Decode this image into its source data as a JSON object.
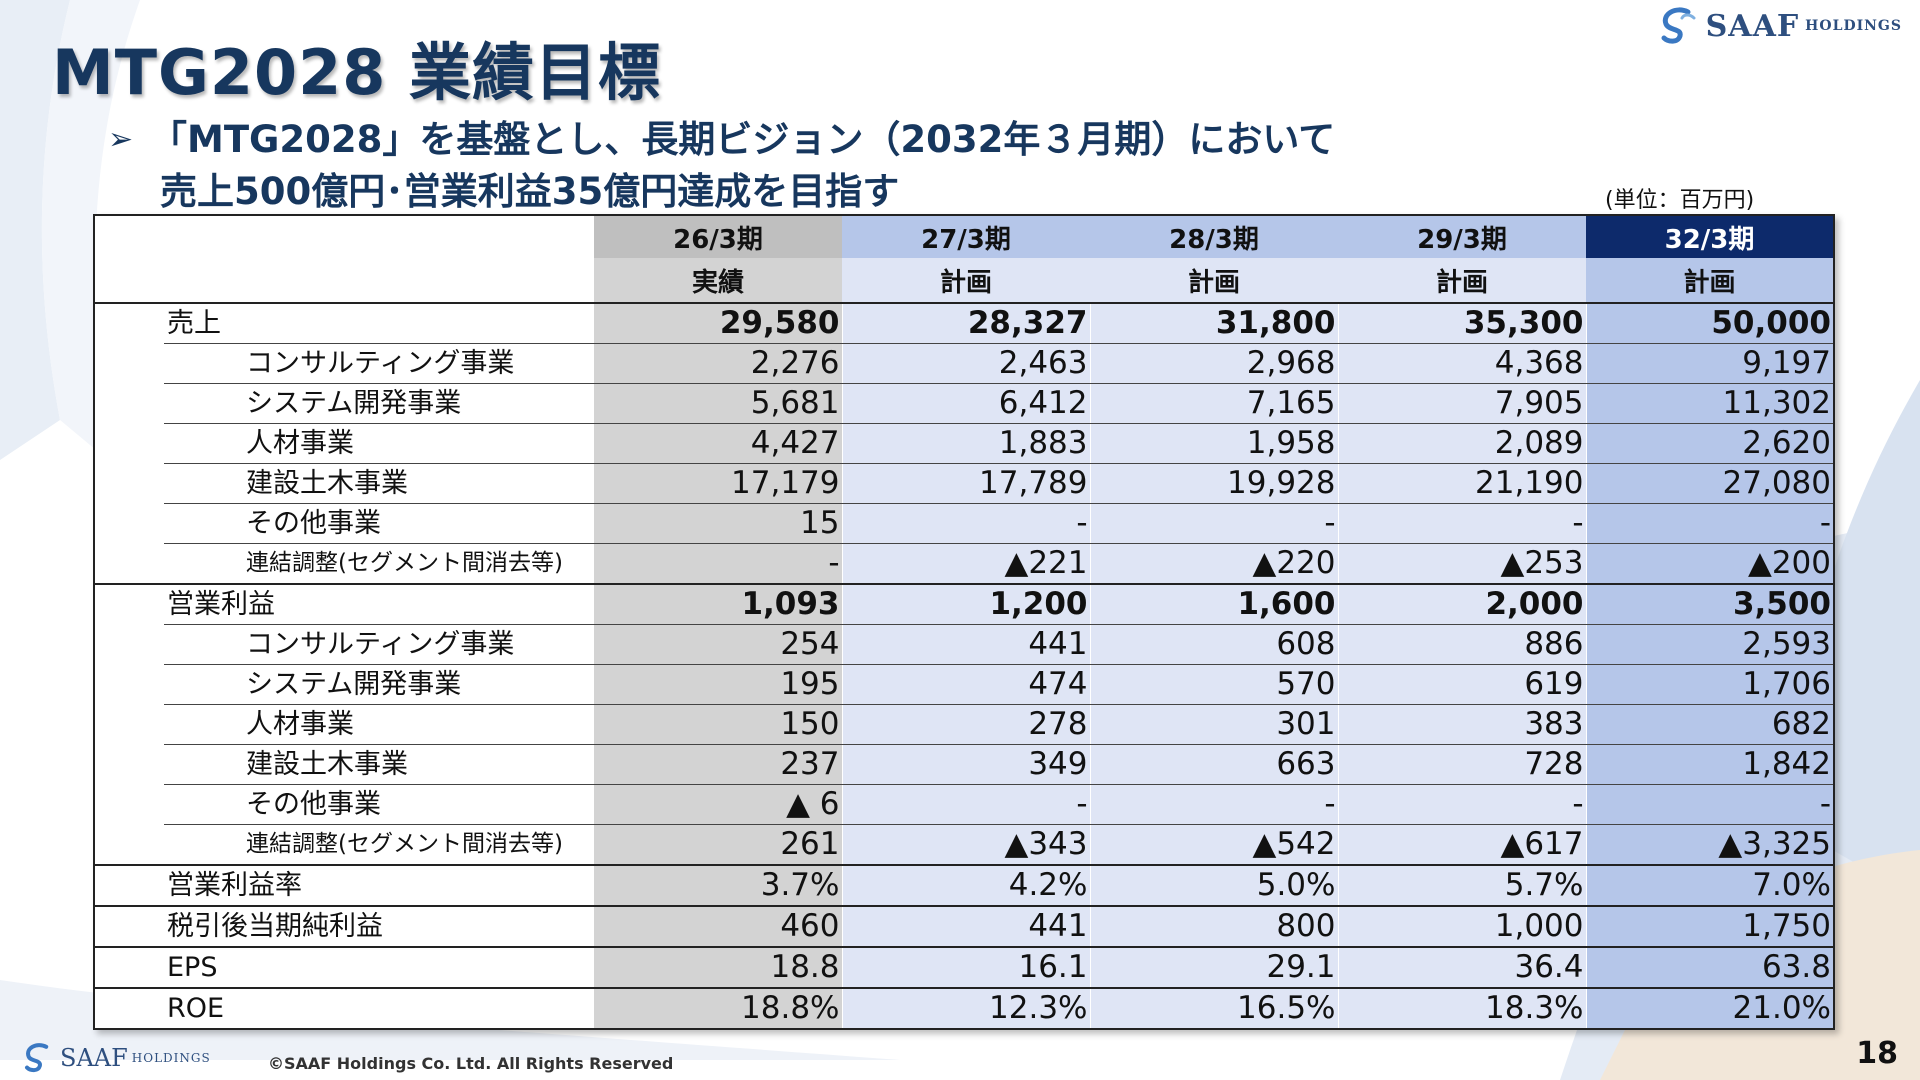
{
  "title": "MTG2028 業績目標",
  "logo": {
    "main": "SAAF",
    "sub": "HOLDINGS"
  },
  "subtitle": {
    "arrow": "➢",
    "line1": "「MTG2028」を基盤とし、長期ビジョン（2032年３月期）において",
    "line2": "売上500億円･営業利益35億円達成を目指す"
  },
  "unit": "(単位：百万円)",
  "table": {
    "periods": [
      {
        "year": "26/3期",
        "type": "実績"
      },
      {
        "year": "27/3期",
        "type": "計画"
      },
      {
        "year": "28/3期",
        "type": "計画"
      },
      {
        "year": "29/3期",
        "type": "計画"
      },
      {
        "year": "32/3期",
        "type": "計画"
      }
    ],
    "rows": [
      {
        "label": "売上",
        "level": 0,
        "values": [
          "29,580",
          "28,327",
          "31,800",
          "35,300",
          "50,000"
        ]
      },
      {
        "label": "コンサルティング事業",
        "level": 1,
        "values": [
          "2,276",
          "2,463",
          "2,968",
          "4,368",
          "9,197"
        ]
      },
      {
        "label": "システム開発事業",
        "level": 1,
        "values": [
          "5,681",
          "6,412",
          "7,165",
          "7,905",
          "11,302"
        ]
      },
      {
        "label": "人材事業",
        "level": 1,
        "values": [
          "4,427",
          "1,883",
          "1,958",
          "2,089",
          "2,620"
        ]
      },
      {
        "label": "建設土木事業",
        "level": 1,
        "values": [
          "17,179",
          "17,789",
          "19,928",
          "21,190",
          "27,080"
        ]
      },
      {
        "label": "その他事業",
        "level": 1,
        "values": [
          "15",
          "-",
          "-",
          "-",
          "-"
        ]
      },
      {
        "label": "連結調整(セグメント間消去等)",
        "level": 2,
        "values": [
          "-",
          "▲221",
          "▲220",
          "▲253",
          "▲200"
        ]
      },
      {
        "label": "営業利益",
        "level": 0,
        "values": [
          "1,093",
          "1,200",
          "1,600",
          "2,000",
          "3,500"
        ]
      },
      {
        "label": "コンサルティング事業",
        "level": 1,
        "values": [
          "254",
          "441",
          "608",
          "886",
          "2,593"
        ]
      },
      {
        "label": "システム開発事業",
        "level": 1,
        "values": [
          "195",
          "474",
          "570",
          "619",
          "1,706"
        ]
      },
      {
        "label": "人材事業",
        "level": 1,
        "values": [
          "150",
          "278",
          "301",
          "383",
          "682"
        ]
      },
      {
        "label": "建設土木事業",
        "level": 1,
        "values": [
          "237",
          "349",
          "663",
          "728",
          "1,842"
        ]
      },
      {
        "label": "その他事業",
        "level": 1,
        "values": [
          "▲ 6",
          "-",
          "-",
          "-",
          "-"
        ]
      },
      {
        "label": "連結調整(セグメント間消去等)",
        "level": 2,
        "values": [
          "261",
          "▲343",
          "▲542",
          "▲617",
          "▲3,325"
        ]
      },
      {
        "label": "営業利益率",
        "level": 0,
        "values": [
          "3.7%",
          "4.2%",
          "5.0%",
          "5.7%",
          "7.0%"
        ]
      },
      {
        "label": "税引後当期純利益",
        "level": 0,
        "values": [
          "460",
          "441",
          "800",
          "1,000",
          "1,750"
        ]
      },
      {
        "label": "EPS",
        "level": 0,
        "values": [
          "18.8",
          "16.1",
          "29.1",
          "36.4",
          "63.8"
        ]
      },
      {
        "label": "ROE",
        "level": 0,
        "values": [
          "18.8%",
          "12.3%",
          "16.5%",
          "18.3%",
          "21.0%"
        ]
      }
    ]
  },
  "footer": {
    "logo_main": "SAAF",
    "logo_sub": "HOLDINGS",
    "copyright": "©SAAF Holdings Co. Ltd. All Rights Reserved",
    "page_number": "18"
  },
  "colors": {
    "title": "#17375e",
    "actual_column": "#d3d3d3",
    "plan_column": "#dfe5f5",
    "target_column": "#b5c6e9",
    "target_header": "#0d2a6b"
  }
}
